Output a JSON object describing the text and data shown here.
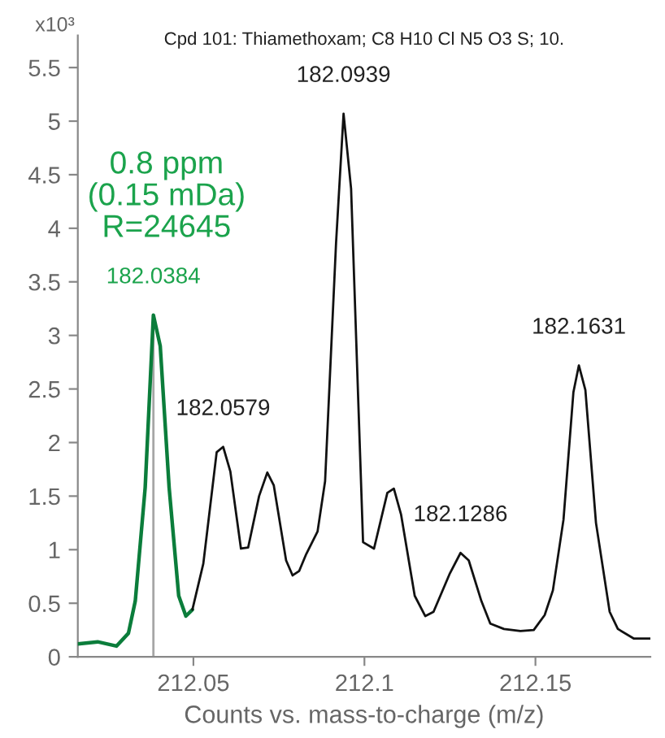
{
  "chart_data": {
    "type": "line",
    "title": "Cpd 101: Thiamethoxam; C8 H10 Cl N5 O3 S; 10.",
    "xlabel": "Counts vs. mass-to-charge (m/z)",
    "ylabel": "x10³",
    "xlim": [
      212.0162,
      212.1836
    ],
    "ylim": [
      0,
      5.8
    ],
    "xticks": [
      212.05,
      212.1,
      212.15
    ],
    "yticks": [
      0,
      0.5,
      1,
      1.5,
      2,
      2.5,
      3,
      3.5,
      4,
      4.5,
      5,
      5.5
    ],
    "grid": false,
    "marker": "none",
    "line_style": "solid",
    "series": [
      {
        "color": "#0b7d3b",
        "x": [
          212.0162,
          212.022,
          212.0275,
          212.031,
          212.033,
          212.0359,
          212.0383,
          212.0403,
          212.0429,
          212.0457,
          212.0478,
          212.0497
        ],
        "values": [
          0.12,
          0.14,
          0.1,
          0.22,
          0.52,
          1.58,
          3.19,
          2.9,
          1.58,
          0.57,
          0.38,
          0.44
        ]
      },
      {
        "color": "#111111",
        "x": [
          212.0497,
          212.0529,
          212.0568,
          212.0587,
          212.0608,
          212.0639,
          212.066,
          212.0692,
          212.0716,
          212.0735,
          212.0771,
          212.079,
          212.0809,
          212.083,
          212.0863,
          212.0885,
          212.0917,
          212.0939,
          212.0961,
          212.0996,
          212.1028,
          212.1067,
          212.1086,
          212.1107,
          212.1147,
          212.1178,
          212.1202,
          212.125,
          212.1281,
          212.1305,
          212.1342,
          212.1368,
          212.1408,
          212.1456,
          212.1495,
          212.1527,
          212.1551,
          212.1582,
          212.1611,
          212.1627,
          212.1646,
          212.1677,
          212.1717,
          212.1741,
          212.1788,
          212.1836
        ],
        "values": [
          0.44,
          0.87,
          1.91,
          1.96,
          1.73,
          1.01,
          1.02,
          1.5,
          1.72,
          1.6,
          0.9,
          0.76,
          0.8,
          0.96,
          1.17,
          1.64,
          3.86,
          5.07,
          4.37,
          1.07,
          1.01,
          1.53,
          1.57,
          1.33,
          0.57,
          0.38,
          0.42,
          0.78,
          0.97,
          0.9,
          0.52,
          0.31,
          0.26,
          0.24,
          0.25,
          0.39,
          0.62,
          1.28,
          2.47,
          2.72,
          2.49,
          1.25,
          0.42,
          0.26,
          0.17,
          0.17
        ]
      },
      {
        "color": "#a6a6a6",
        "x": [
          212.0383,
          212.0383
        ],
        "values": [
          0,
          3.19
        ]
      }
    ],
    "annotations": [
      "0.8 ppm\n(0.15 mDa)\nR=24645",
      {
        "text": "182.0384",
        "x": 212.0383,
        "y": 3.19
      },
      {
        "text": "182.0579",
        "x": 212.0587,
        "y": 1.96
      },
      {
        "text": "182.0939",
        "x": 212.0939,
        "y": 5.07
      },
      {
        "text": "182.1286",
        "x": 212.1281,
        "y": 0.97
      },
      {
        "text": "182.1631",
        "x": 212.1627,
        "y": 2.72
      }
    ]
  }
}
